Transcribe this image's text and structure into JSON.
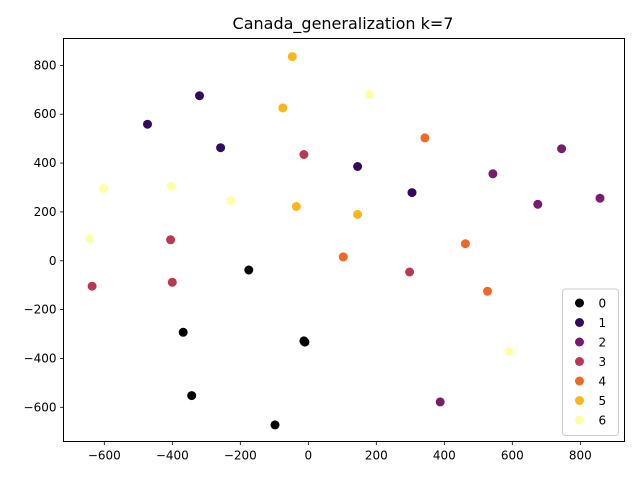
{
  "chart_data": {
    "type": "scatter",
    "title": "Canada_generalization k=7",
    "xlabel": "",
    "ylabel": "",
    "xlim": [
      -720,
      930
    ],
    "ylim": [
      -740,
      910
    ],
    "xticks": [
      -600,
      -400,
      -200,
      0,
      200,
      400,
      600,
      800
    ],
    "yticks": [
      -600,
      -400,
      -200,
      0,
      200,
      400,
      600,
      800
    ],
    "grid": false,
    "legend_position": "bottom-right",
    "series": [
      {
        "name": "0",
        "color": "#000004",
        "points": [
          [
            -175,
            -38
          ],
          [
            -368,
            -293
          ],
          [
            -343,
            -552
          ],
          [
            -98,
            -672
          ],
          [
            -13,
            -328
          ],
          [
            -10,
            -333
          ]
        ]
      },
      {
        "name": "1",
        "color": "#320a5e",
        "points": [
          [
            -473,
            559
          ],
          [
            -320,
            676
          ],
          [
            -258,
            463
          ],
          [
            145,
            386
          ],
          [
            305,
            279
          ]
        ]
      },
      {
        "name": "2",
        "color": "#781c6d",
        "points": [
          [
            543,
            356
          ],
          [
            675,
            231
          ],
          [
            745,
            459
          ],
          [
            858,
            256
          ],
          [
            388,
            -578
          ]
        ]
      },
      {
        "name": "3",
        "color": "#bc3754",
        "points": [
          [
            -13,
            435
          ],
          [
            -405,
            86
          ],
          [
            -400,
            -88
          ],
          [
            -636,
            -104
          ],
          [
            298,
            -46
          ]
        ]
      },
      {
        "name": "4",
        "color": "#ed6925",
        "points": [
          [
            343,
            503
          ],
          [
            103,
            16
          ],
          [
            462,
            70
          ],
          [
            527,
            -125
          ]
        ]
      },
      {
        "name": "5",
        "color": "#fbb61a",
        "points": [
          [
            -47,
            836
          ],
          [
            -75,
            626
          ],
          [
            -35,
            222
          ],
          [
            145,
            190
          ]
        ]
      },
      {
        "name": "6",
        "color": "#fcffa4",
        "points": [
          [
            180,
            681
          ],
          [
            -603,
            296
          ],
          [
            -403,
            304
          ],
          [
            -228,
            246
          ],
          [
            -643,
            91
          ],
          [
            590,
            -372
          ]
        ]
      }
    ]
  }
}
